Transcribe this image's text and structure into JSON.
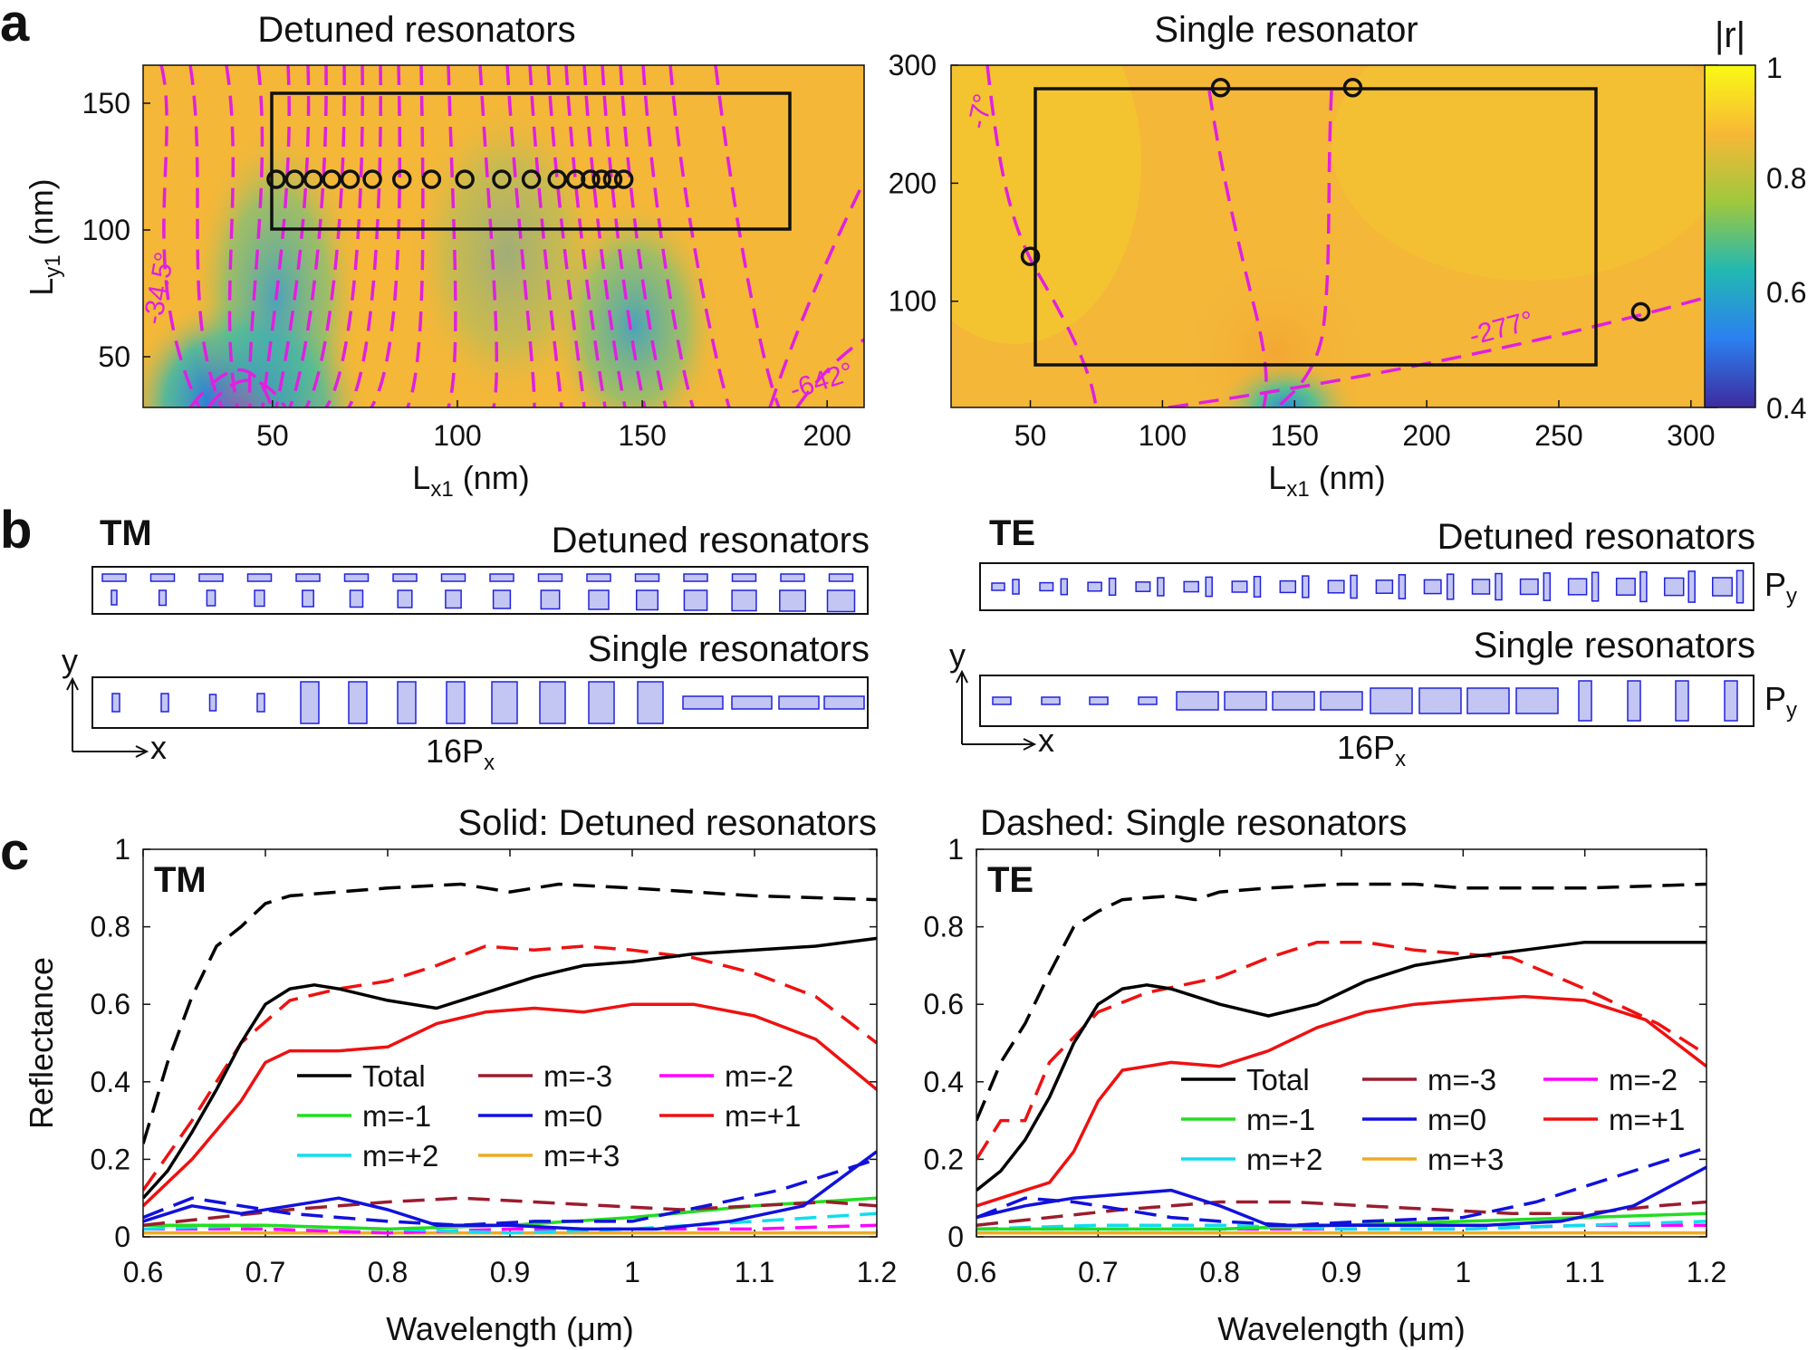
{
  "panel_labels": {
    "a": "a",
    "b": "b",
    "c": "c"
  },
  "panel_a": {
    "left": {
      "title": "Detuned resonators",
      "xlabel_main": "L",
      "xlabel_sub": "x1",
      "xlabel_unit": " (nm)",
      "ylabel_main": "L",
      "ylabel_sub": "y1",
      "ylabel_unit": " (nm)",
      "xticks": [
        "50",
        "100",
        "150",
        "200"
      ],
      "yticks": [
        "50",
        "100",
        "150"
      ],
      "xlim": [
        15,
        210
      ],
      "ylim": [
        30,
        165
      ],
      "contour_labels": [
        "-34.5°",
        "-642°"
      ]
    },
    "right": {
      "title": "Single resonator",
      "xlabel_main": "L",
      "xlabel_sub": "x1",
      "xlabel_unit": " (nm)",
      "xticks": [
        "50",
        "100",
        "150",
        "200",
        "250",
        "300"
      ],
      "yticks": [
        "100",
        "200",
        "300"
      ],
      "xlim": [
        20,
        310
      ],
      "ylim": [
        10,
        300
      ],
      "contour_labels": [
        "-7°",
        "-277°"
      ]
    },
    "colorbar": {
      "label": "|r|",
      "ticks": [
        "1",
        "0.8",
        "0.6",
        "0.4"
      ]
    }
  },
  "panel_b": {
    "tm_label": "TM",
    "te_label": "TE",
    "tm_detuned_title": "Detuned resonators",
    "tm_single_title": "Single resonators",
    "te_detuned_title": "Detuned resonators",
    "te_single_title": "Single resonators",
    "axis_y": "y",
    "axis_x": "x",
    "period_main": "16P",
    "period_sub": "x",
    "py_main": "P",
    "py_sub": "y"
  },
  "panel_c": {
    "left_title": "Solid: Detuned resonators",
    "right_title": "Dashed: Single resonators",
    "left_tag": "TM",
    "right_tag": "TE",
    "xlabel": "Wavelength (μm)",
    "ylabel": "Reflectance",
    "xticks": [
      "0.6",
      "0.7",
      "0.8",
      "0.9",
      "1",
      "1.1",
      "1.2"
    ],
    "yticks": [
      "0",
      "0.2",
      "0.4",
      "0.6",
      "0.8",
      "1"
    ],
    "legend": [
      {
        "label": "Total",
        "color": "#000000"
      },
      {
        "label": "m=-3",
        "color": "#9b1c2e"
      },
      {
        "label": "m=-2",
        "color": "#ff00ff"
      },
      {
        "label": "m=-1",
        "color": "#22dd22"
      },
      {
        "label": "m=0",
        "color": "#1111dd"
      },
      {
        "label": "m=+1",
        "color": "#ee1111"
      },
      {
        "label": "m=+2",
        "color": "#11ddee"
      },
      {
        "label": "m=+3",
        "color": "#eeaa22"
      }
    ]
  },
  "chart_data": [
    {
      "type": "heatmap",
      "title": "Detuned resonators",
      "xlabel": "Lx1 (nm)",
      "ylabel": "Ly1 (nm)",
      "xlim": [
        15,
        210
      ],
      "ylim": [
        30,
        165
      ],
      "markers": {
        "x": [
          51,
          56,
          61,
          66,
          71,
          77,
          85,
          93,
          102,
          112,
          120,
          127,
          132,
          136,
          139,
          142,
          145
        ],
        "y": [
          120,
          120,
          120,
          120,
          120,
          120,
          120,
          120,
          120,
          120,
          120,
          120,
          120,
          120,
          120,
          120,
          120
        ]
      },
      "rect": {
        "x": [
          50,
          190
        ],
        "y": [
          100,
          155
        ]
      }
    },
    {
      "type": "heatmap",
      "title": "Single resonator",
      "xlabel": "Lx1 (nm)",
      "xlim": [
        20,
        310
      ],
      "ylim": [
        10,
        300
      ],
      "markers": {
        "x": [
          50,
          122,
          172,
          281
        ],
        "y": [
          138,
          281,
          281,
          91
        ]
      },
      "rect": {
        "x": [
          50,
          280
        ],
        "y": [
          50,
          280
        ]
      }
    },
    {
      "type": "line",
      "title": "TM",
      "xlabel": "Wavelength (μm)",
      "ylabel": "Reflectance",
      "xlim": [
        0.6,
        1.2
      ],
      "ylim": [
        0,
        1
      ],
      "series": [
        {
          "name": "Total (detuned)",
          "style": "solid",
          "color": "#000000",
          "x": [
            0.6,
            0.62,
            0.64,
            0.66,
            0.68,
            0.7,
            0.72,
            0.74,
            0.76,
            0.8,
            0.84,
            0.88,
            0.92,
            0.96,
            1.0,
            1.05,
            1.1,
            1.15,
            1.2
          ],
          "y": [
            0.1,
            0.17,
            0.27,
            0.38,
            0.5,
            0.6,
            0.64,
            0.65,
            0.64,
            0.61,
            0.59,
            0.63,
            0.67,
            0.7,
            0.71,
            0.73,
            0.74,
            0.75,
            0.77
          ]
        },
        {
          "name": "Total (single)",
          "style": "dashed",
          "color": "#000000",
          "x": [
            0.6,
            0.62,
            0.64,
            0.66,
            0.68,
            0.7,
            0.72,
            0.76,
            0.8,
            0.86,
            0.9,
            0.94,
            1.0,
            1.1,
            1.2
          ],
          "y": [
            0.24,
            0.45,
            0.62,
            0.75,
            0.8,
            0.86,
            0.88,
            0.89,
            0.9,
            0.91,
            0.89,
            0.91,
            0.9,
            0.88,
            0.87
          ]
        },
        {
          "name": "m=+1 (detuned)",
          "style": "solid",
          "color": "#ee1111",
          "x": [
            0.6,
            0.64,
            0.68,
            0.7,
            0.72,
            0.76,
            0.8,
            0.84,
            0.88,
            0.92,
            0.96,
            1.0,
            1.05,
            1.1,
            1.15,
            1.2
          ],
          "y": [
            0.08,
            0.2,
            0.35,
            0.45,
            0.48,
            0.48,
            0.49,
            0.55,
            0.58,
            0.59,
            0.58,
            0.6,
            0.6,
            0.57,
            0.51,
            0.38
          ]
        },
        {
          "name": "m=+1 (single)",
          "style": "dashed",
          "color": "#ee1111",
          "x": [
            0.6,
            0.64,
            0.68,
            0.72,
            0.76,
            0.8,
            0.84,
            0.88,
            0.92,
            0.96,
            1.0,
            1.05,
            1.1,
            1.15,
            1.2
          ],
          "y": [
            0.12,
            0.3,
            0.5,
            0.61,
            0.64,
            0.66,
            0.7,
            0.75,
            0.74,
            0.75,
            0.74,
            0.72,
            0.68,
            0.62,
            0.5
          ]
        },
        {
          "name": "m=0 (detuned)",
          "style": "solid",
          "color": "#1111dd",
          "x": [
            0.6,
            0.64,
            0.68,
            0.72,
            0.76,
            0.8,
            0.84,
            0.9,
            0.96,
            1.02,
            1.08,
            1.14,
            1.2
          ],
          "y": [
            0.04,
            0.08,
            0.06,
            0.08,
            0.1,
            0.07,
            0.03,
            0.03,
            0.02,
            0.02,
            0.04,
            0.08,
            0.22
          ]
        },
        {
          "name": "m=0 (single)",
          "style": "dashed",
          "color": "#1111dd",
          "x": [
            0.6,
            0.64,
            0.68,
            0.72,
            0.76,
            0.8,
            0.86,
            0.92,
            1.0,
            1.06,
            1.12,
            1.2
          ],
          "y": [
            0.05,
            0.1,
            0.08,
            0.06,
            0.05,
            0.04,
            0.03,
            0.04,
            0.04,
            0.08,
            0.12,
            0.2
          ]
        },
        {
          "name": "m=-3",
          "style": "dashed",
          "color": "#9b1c2e",
          "x": [
            0.6,
            0.66,
            0.72,
            0.8,
            0.86,
            0.92,
            0.98,
            1.04,
            1.1,
            1.16,
            1.2
          ],
          "y": [
            0.03,
            0.05,
            0.07,
            0.09,
            0.1,
            0.09,
            0.08,
            0.07,
            0.08,
            0.09,
            0.08
          ]
        },
        {
          "name": "m=-1",
          "style": "solid",
          "color": "#22dd22",
          "x": [
            0.6,
            0.7,
            0.8,
            0.9,
            1.0,
            1.1,
            1.2
          ],
          "y": [
            0.03,
            0.03,
            0.02,
            0.03,
            0.05,
            0.08,
            0.1
          ]
        },
        {
          "name": "m=+2",
          "style": "dashed",
          "color": "#11ddee",
          "x": [
            0.6,
            0.7,
            0.8,
            0.9,
            1.0,
            1.1,
            1.2
          ],
          "y": [
            0.02,
            0.03,
            0.02,
            0.01,
            0.02,
            0.04,
            0.06
          ]
        },
        {
          "name": "m=-2",
          "style": "dashed",
          "color": "#ff00ff",
          "x": [
            0.6,
            0.7,
            0.8,
            0.9,
            1.0,
            1.1,
            1.2
          ],
          "y": [
            0.02,
            0.02,
            0.01,
            0.02,
            0.02,
            0.02,
            0.03
          ]
        },
        {
          "name": "m=+3",
          "style": "solid",
          "color": "#eeaa22",
          "x": [
            0.6,
            0.7,
            0.8,
            0.9,
            1.0,
            1.1,
            1.2
          ],
          "y": [
            0.01,
            0.01,
            0.01,
            0.01,
            0.01,
            0.01,
            0.01
          ]
        }
      ]
    },
    {
      "type": "line",
      "title": "TE",
      "xlabel": "Wavelength (μm)",
      "xlim": [
        0.6,
        1.2
      ],
      "ylim": [
        0,
        1
      ],
      "series": [
        {
          "name": "Total (detuned)",
          "style": "solid",
          "color": "#000000",
          "x": [
            0.6,
            0.62,
            0.64,
            0.66,
            0.68,
            0.7,
            0.72,
            0.74,
            0.76,
            0.8,
            0.84,
            0.88,
            0.92,
            0.96,
            1.0,
            1.05,
            1.1,
            1.15,
            1.2
          ],
          "y": [
            0.12,
            0.17,
            0.25,
            0.36,
            0.5,
            0.6,
            0.64,
            0.65,
            0.64,
            0.6,
            0.57,
            0.6,
            0.66,
            0.7,
            0.72,
            0.74,
            0.76,
            0.76,
            0.76
          ]
        },
        {
          "name": "Total (single)",
          "style": "dashed",
          "color": "#000000",
          "x": [
            0.6,
            0.62,
            0.64,
            0.66,
            0.68,
            0.7,
            0.72,
            0.76,
            0.78,
            0.8,
            0.84,
            0.9,
            0.96,
            1.0,
            1.1,
            1.2
          ],
          "y": [
            0.3,
            0.45,
            0.55,
            0.68,
            0.8,
            0.84,
            0.87,
            0.88,
            0.87,
            0.89,
            0.9,
            0.91,
            0.91,
            0.9,
            0.9,
            0.91
          ]
        },
        {
          "name": "m=+1 (detuned)",
          "style": "solid",
          "color": "#ee1111",
          "x": [
            0.6,
            0.62,
            0.64,
            0.66,
            0.68,
            0.7,
            0.72,
            0.76,
            0.8,
            0.84,
            0.88,
            0.92,
            0.96,
            1.0,
            1.05,
            1.1,
            1.15,
            1.2
          ],
          "y": [
            0.08,
            0.1,
            0.12,
            0.14,
            0.22,
            0.35,
            0.43,
            0.45,
            0.44,
            0.48,
            0.54,
            0.58,
            0.6,
            0.61,
            0.62,
            0.61,
            0.56,
            0.44
          ]
        },
        {
          "name": "m=+1 (single)",
          "style": "dashed",
          "color": "#ee1111",
          "x": [
            0.6,
            0.62,
            0.64,
            0.66,
            0.7,
            0.74,
            0.8,
            0.84,
            0.88,
            0.92,
            0.96,
            1.0,
            1.04,
            1.1,
            1.16,
            1.2
          ],
          "y": [
            0.2,
            0.3,
            0.3,
            0.45,
            0.58,
            0.63,
            0.67,
            0.72,
            0.76,
            0.76,
            0.74,
            0.73,
            0.72,
            0.64,
            0.55,
            0.47
          ]
        },
        {
          "name": "m=0 (detuned)",
          "style": "solid",
          "color": "#1111dd",
          "x": [
            0.6,
            0.64,
            0.68,
            0.72,
            0.76,
            0.8,
            0.84,
            0.9,
            0.96,
            1.02,
            1.08,
            1.14,
            1.2
          ],
          "y": [
            0.05,
            0.08,
            0.1,
            0.11,
            0.12,
            0.08,
            0.03,
            0.03,
            0.03,
            0.03,
            0.04,
            0.08,
            0.18
          ]
        },
        {
          "name": "m=0 (single)",
          "style": "dashed",
          "color": "#1111dd",
          "x": [
            0.6,
            0.64,
            0.68,
            0.72,
            0.76,
            0.8,
            0.86,
            0.92,
            1.0,
            1.06,
            1.12,
            1.2
          ],
          "y": [
            0.05,
            0.1,
            0.09,
            0.07,
            0.05,
            0.04,
            0.03,
            0.04,
            0.05,
            0.09,
            0.15,
            0.23
          ]
        },
        {
          "name": "m=-3",
          "style": "dashed",
          "color": "#9b1c2e",
          "x": [
            0.6,
            0.66,
            0.72,
            0.8,
            0.86,
            0.92,
            0.98,
            1.04,
            1.1,
            1.16,
            1.2
          ],
          "y": [
            0.03,
            0.05,
            0.07,
            0.09,
            0.09,
            0.08,
            0.07,
            0.06,
            0.06,
            0.08,
            0.09
          ]
        },
        {
          "name": "m=-1",
          "style": "solid",
          "color": "#22dd22",
          "x": [
            0.6,
            0.7,
            0.8,
            0.9,
            1.0,
            1.1,
            1.2
          ],
          "y": [
            0.02,
            0.02,
            0.02,
            0.03,
            0.04,
            0.05,
            0.06
          ]
        },
        {
          "name": "m=+2",
          "style": "dashed",
          "color": "#11ddee",
          "x": [
            0.6,
            0.7,
            0.8,
            0.9,
            1.0,
            1.1,
            1.2
          ],
          "y": [
            0.02,
            0.03,
            0.03,
            0.02,
            0.02,
            0.03,
            0.04
          ]
        },
        {
          "name": "m=-2",
          "style": "dashed",
          "color": "#ff00ff",
          "x": [
            0.6,
            0.7,
            0.8,
            0.9,
            1.0,
            1.1,
            1.2
          ],
          "y": [
            0.02,
            0.02,
            0.02,
            0.02,
            0.02,
            0.03,
            0.03
          ]
        },
        {
          "name": "m=+3",
          "style": "solid",
          "color": "#eeaa22",
          "x": [
            0.6,
            0.7,
            0.8,
            0.9,
            1.0,
            1.1,
            1.2
          ],
          "y": [
            0.01,
            0.01,
            0.01,
            0.01,
            0.01,
            0.01,
            0.01
          ]
        }
      ]
    }
  ]
}
